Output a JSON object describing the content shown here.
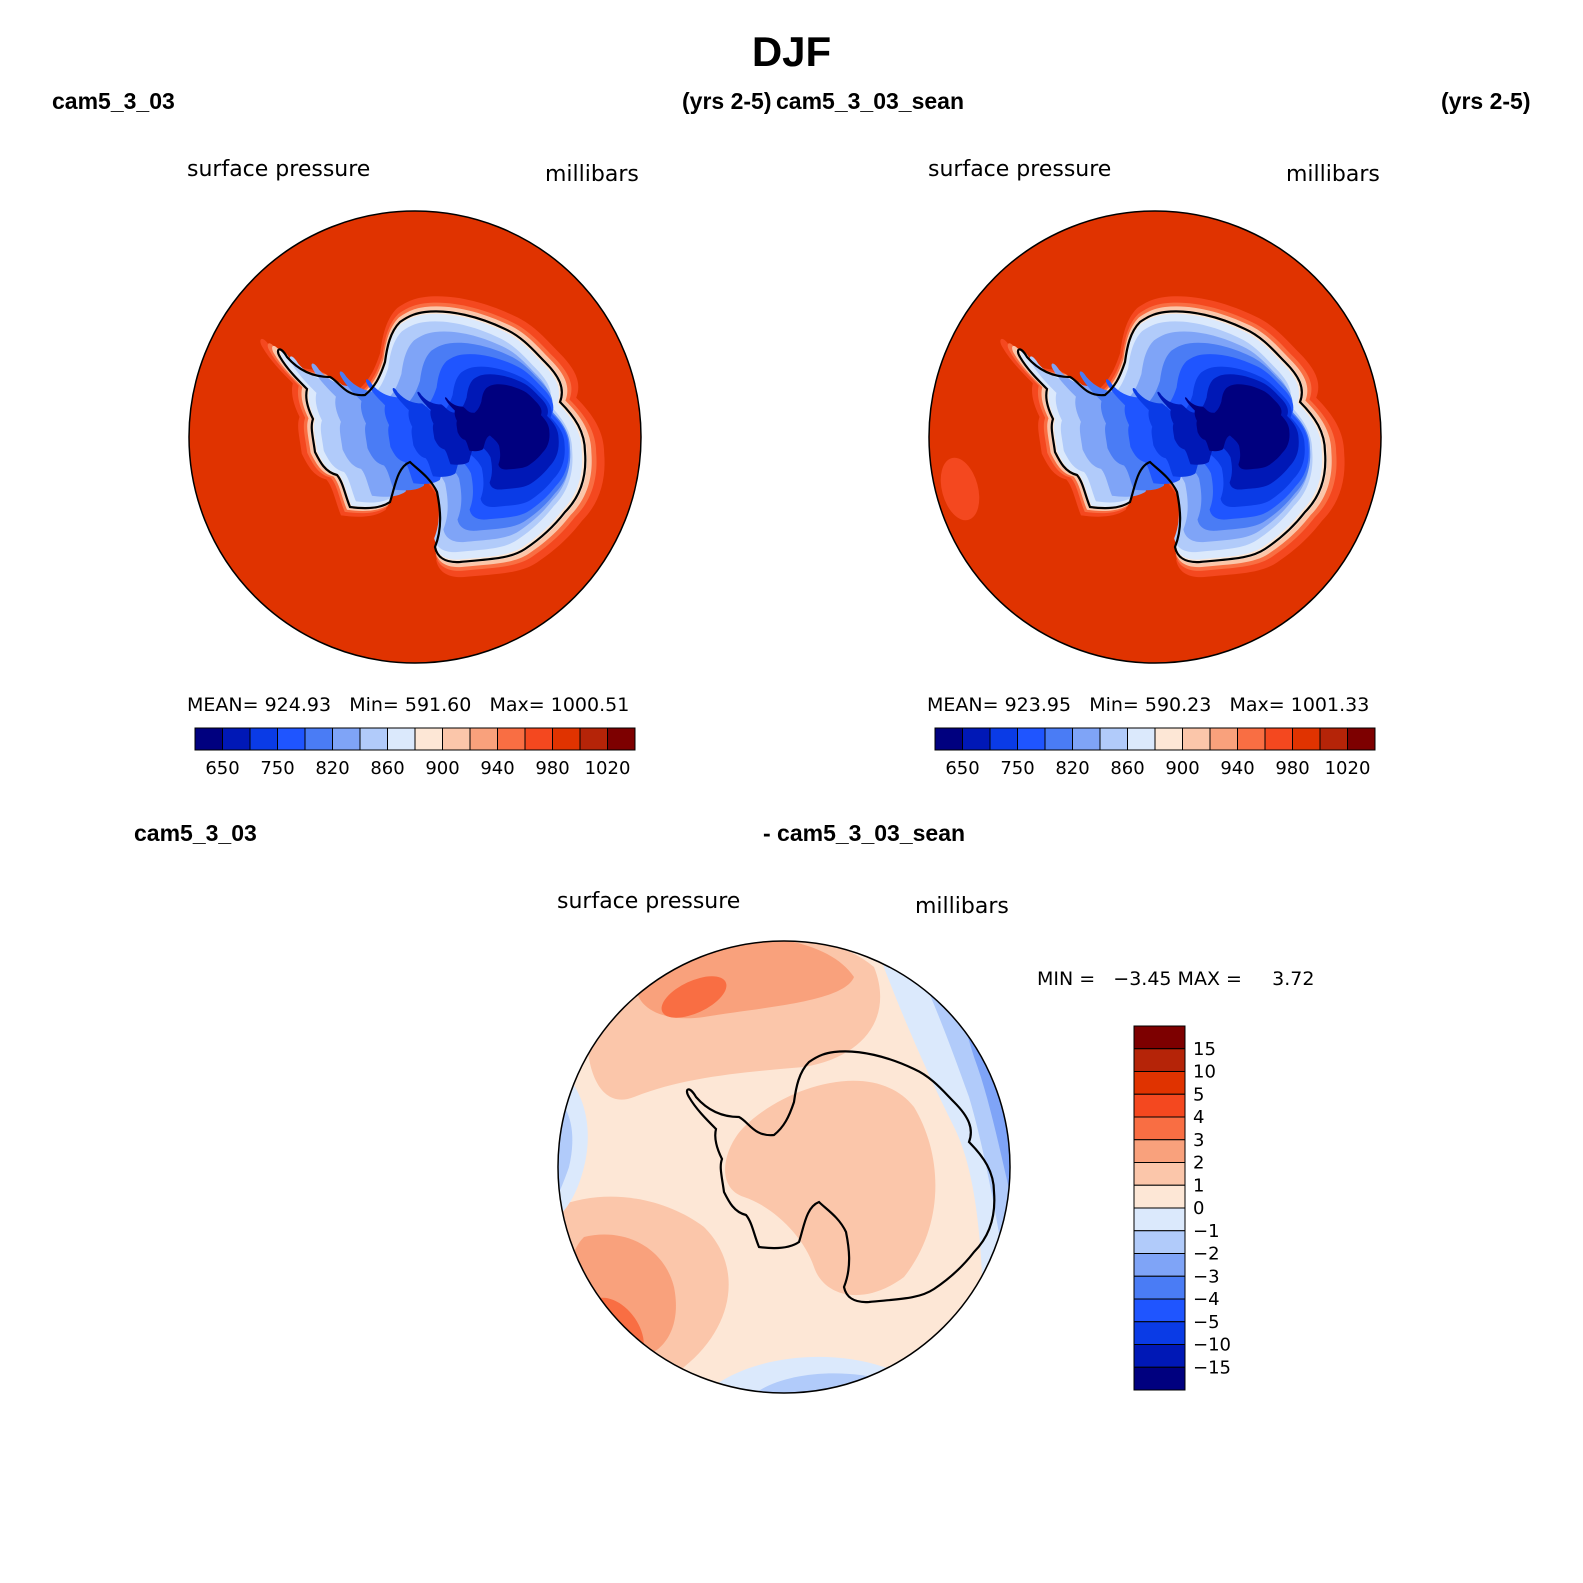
{
  "title": "DJF",
  "panels": [
    {
      "case_left": "cam5_3_03",
      "case_right": "(yrs 2-5)",
      "variable": "surface pressure",
      "units": "millibars",
      "stats": {
        "mean_label": "MEAN=",
        "mean": "924.93",
        "min_label": "Min=",
        "min": "591.60",
        "max_label": "Max=",
        "max": "1000.51"
      }
    },
    {
      "case_left": "cam5_3_03_sean",
      "case_right": "(yrs 2-5)",
      "variable": "surface pressure",
      "units": "millibars",
      "stats": {
        "mean_label": "MEAN=",
        "mean": "923.95",
        "min_label": "Min=",
        "min": "590.23",
        "max_label": "Max=",
        "max": "1001.33"
      }
    }
  ],
  "diff_panel": {
    "case_left": "cam5_3_03",
    "case_right": "- cam5_3_03_sean",
    "variable": "surface pressure",
    "units": "millibars",
    "min_max": "MIN =   −3.45 MAX =     3.72"
  },
  "chart_data": [
    {
      "type": "map",
      "projection": "south polar stereographic",
      "title": "cam5_3_03 surface pressure (millibars)",
      "colorbar_colors": [
        "#00007f",
        "#0018b6",
        "#0a3be6",
        "#1f55ff",
        "#4a7cf5",
        "#7fa4f7",
        "#b1cbfa",
        "#dbe9fc",
        "#fde7d6",
        "#fbc6aa",
        "#f9a17c",
        "#f96e43",
        "#f4481f",
        "#e03300",
        "#b52408",
        "#7d0000"
      ],
      "colorbar_labels": [
        "650",
        "750",
        "820",
        "860",
        "900",
        "940",
        "980",
        "1020"
      ],
      "ocean_color": "#e03300"
    },
    {
      "type": "map",
      "projection": "south polar stereographic",
      "title": "cam5_3_03_sean surface pressure (millibars)",
      "colorbar_colors": [
        "#00007f",
        "#0018b6",
        "#0a3be6",
        "#1f55ff",
        "#4a7cf5",
        "#7fa4f7",
        "#b1cbfa",
        "#dbe9fc",
        "#fde7d6",
        "#fbc6aa",
        "#f9a17c",
        "#f96e43",
        "#f4481f",
        "#e03300",
        "#b52408",
        "#7d0000"
      ],
      "colorbar_labels": [
        "650",
        "750",
        "820",
        "860",
        "900",
        "940",
        "980",
        "1020"
      ],
      "ocean_color": "#e03300"
    },
    {
      "type": "map",
      "projection": "south polar stereographic",
      "title": "cam5_3_03 - cam5_3_03_sean surface pressure difference (millibars)",
      "colorbar_colors": [
        "#7d0000",
        "#b52408",
        "#e03300",
        "#f4481f",
        "#f96e43",
        "#f9a17c",
        "#fbc6aa",
        "#fde7d6",
        "#dbe9fc",
        "#b1cbfa",
        "#7fa4f7",
        "#4a7cf5",
        "#1f55ff",
        "#0a3be6",
        "#0018b6",
        "#00007f"
      ],
      "colorbar_labels": [
        "15",
        "10",
        "5",
        "4",
        "3",
        "2",
        "1",
        "0",
        "−1",
        "−2",
        "−3",
        "−4",
        "−5",
        "−10",
        "−15"
      ]
    }
  ]
}
